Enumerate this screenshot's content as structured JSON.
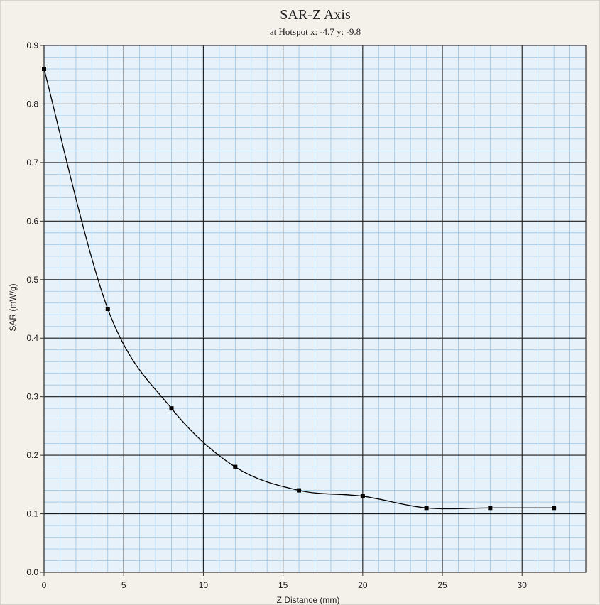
{
  "chart_data": {
    "type": "line",
    "title": "SAR-Z Axis",
    "subtitle": "at Hotspot x: -4.7 y: -9.8",
    "xlabel": "Z Distance (mm)",
    "ylabel": "SAR (mW/g)",
    "xlim": [
      0,
      34
    ],
    "ylim": [
      0,
      0.9
    ],
    "x_ticks": [
      0,
      5,
      10,
      15,
      20,
      25,
      30
    ],
    "y_ticks": [
      0.0,
      0.1,
      0.2,
      0.3,
      0.4,
      0.5,
      0.6,
      0.7,
      0.8,
      0.9
    ],
    "x_tick_labels": [
      "0",
      "5",
      "10",
      "15",
      "20",
      "25",
      "30"
    ],
    "y_tick_labels": [
      "0.0",
      "0.1",
      "0.2",
      "0.3",
      "0.4",
      "0.5",
      "0.6",
      "0.7",
      "0.8",
      "0.9"
    ],
    "grid": true,
    "minor_grid": true,
    "series": [
      {
        "x": [
          0,
          4,
          8,
          12,
          16,
          20,
          24,
          28,
          32
        ],
        "y": [
          0.86,
          0.45,
          0.28,
          0.18,
          0.14,
          0.13,
          0.11,
          0.11,
          0.11
        ],
        "markers": true
      }
    ],
    "colors": {
      "plot_bg": "#e6f1fa",
      "major_grid": "#1a1a1a",
      "minor_grid": "#9ec4e2",
      "line": "#000000",
      "page_bg": "#f3f1ea"
    }
  }
}
